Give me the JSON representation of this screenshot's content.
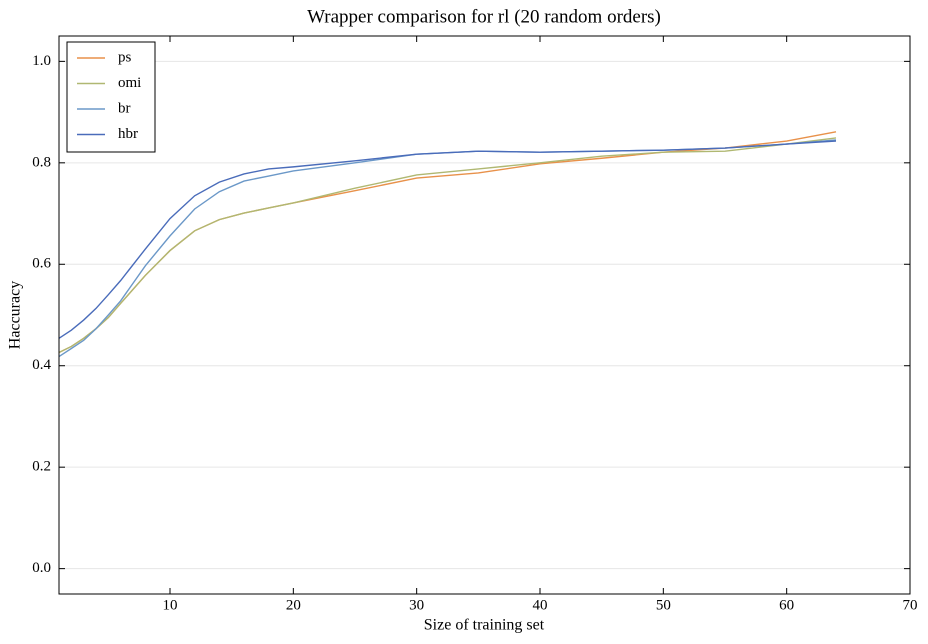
{
  "chart_data": {
    "type": "line",
    "title": "Wrapper comparison for rl (20 random orders)",
    "x_label": "Size of training set",
    "y_label": "Haccuracy",
    "x": [
      1,
      2,
      3,
      4,
      5,
      6,
      8,
      10,
      12,
      14,
      16,
      18,
      20,
      25,
      30,
      35,
      40,
      45,
      50,
      55,
      60,
      64
    ],
    "series": [
      {
        "name": "ps",
        "color": "#e8914a",
        "values": [
          0.426,
          0.438,
          0.454,
          0.473,
          0.495,
          0.523,
          0.578,
          0.627,
          0.666,
          0.688,
          0.701,
          0.711,
          0.721,
          0.745,
          0.77,
          0.78,
          0.798,
          0.809,
          0.821,
          0.829,
          0.843,
          0.861
        ]
      },
      {
        "name": "omi",
        "color": "#b0b872",
        "values": [
          0.426,
          0.438,
          0.454,
          0.473,
          0.495,
          0.523,
          0.578,
          0.627,
          0.666,
          0.688,
          0.701,
          0.711,
          0.721,
          0.75,
          0.776,
          0.788,
          0.8,
          0.813,
          0.821,
          0.823,
          0.837,
          0.849
        ]
      },
      {
        "name": "br",
        "color": "#6b98c8",
        "values": [
          0.418,
          0.434,
          0.45,
          0.473,
          0.5,
          0.528,
          0.597,
          0.656,
          0.709,
          0.743,
          0.764,
          0.774,
          0.784,
          0.8,
          0.817,
          0.823,
          0.821,
          0.823,
          0.825,
          0.829,
          0.837,
          0.845
        ]
      },
      {
        "name": "hbr",
        "color": "#4a6cba",
        "values": [
          0.454,
          0.47,
          0.49,
          0.513,
          0.54,
          0.568,
          0.63,
          0.69,
          0.735,
          0.762,
          0.778,
          0.788,
          0.792,
          0.804,
          0.817,
          0.823,
          0.821,
          0.823,
          0.825,
          0.829,
          0.837,
          0.843
        ]
      }
    ],
    "xlim": [
      1,
      70
    ],
    "xticks": [
      10,
      20,
      30,
      40,
      50,
      60,
      70
    ],
    "ylim": [
      -0.05,
      1.05
    ],
    "yticks": [
      {
        "value": 0,
        "label": "0.0"
      },
      0.2,
      0.4,
      0.6,
      0.8,
      {
        "value": 1,
        "label": "1.0"
      }
    ],
    "grid": true,
    "legend": "upper-left"
  }
}
